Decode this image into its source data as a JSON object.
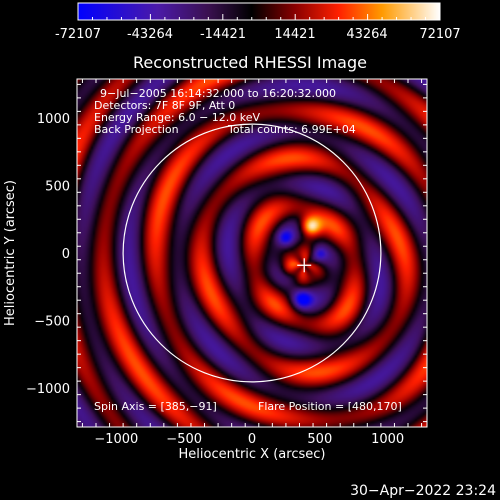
{
  "colorbar": {
    "ticks": [
      "-72107",
      "-43264",
      "-14421",
      "14421",
      "43264",
      "72107"
    ],
    "min": -72107,
    "max": 72107
  },
  "chart_data": {
    "type": "heatmap",
    "title": "Reconstructed RHESSI Image",
    "xlabel": "Heliocentric X (arcsec)",
    "ylabel": "Heliocentric Y (arcsec)",
    "xlim": [
      -1290,
      1290
    ],
    "ylim": [
      -1290,
      1290
    ],
    "x_ticks": [
      -1000,
      -500,
      0,
      500,
      1000
    ],
    "y_ticks": [
      1000,
      500,
      0,
      -500,
      -1000
    ],
    "x_tick_labels": [
      "−1000",
      "−500",
      "0",
      "500",
      "1000"
    ],
    "y_tick_labels": [
      "1000",
      "500",
      "0",
      "−500",
      "−1000"
    ],
    "info_lines": [
      "9−Jul−2005 16:14:32.000 to 16:20:32.000",
      "Detectors: 7F 8F 9F, Att 0",
      "Energy Range: 6.0 − 12.0 keV"
    ],
    "method": "Back Projection",
    "total_counts": "Total counts: 6.99E+04",
    "spin_axis": "Spin Axis = [385,−91]",
    "flare_position": "Flare Position = [480,170]",
    "spin_center": [
      385,
      -91
    ],
    "bright_source": [
      480,
      170
    ],
    "solar_limb": {
      "center": [
        0,
        0
      ],
      "radius": 950
    },
    "colormap": [
      "#0000ff",
      "#6a0dad",
      "#000000",
      "#cc0000",
      "#ff8800",
      "#ffff88",
      "#ffffff"
    ],
    "limb_color": "#ffffff"
  },
  "timestamp": "30−Apr−2022 23:24"
}
